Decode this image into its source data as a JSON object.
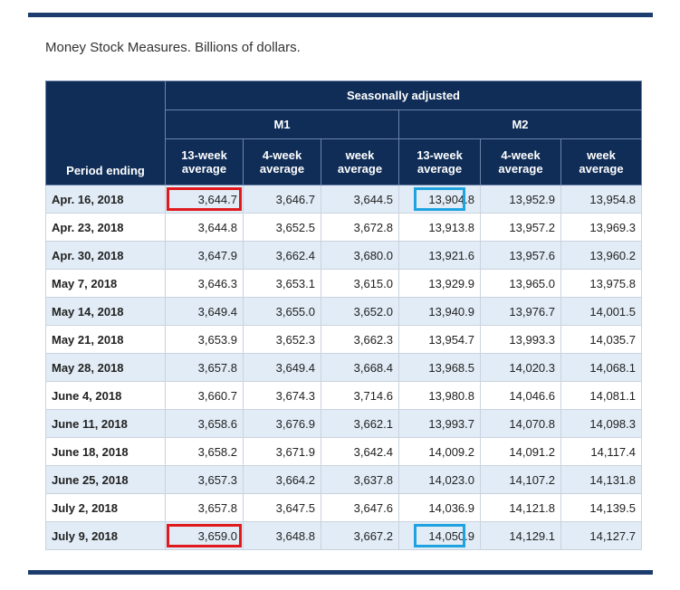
{
  "caption": "Money Stock Measures. Billions of dollars.",
  "headers": {
    "group": "Seasonally adjusted",
    "m1": "M1",
    "m2": "M2",
    "period": "Period ending",
    "cols": [
      [
        "13-week",
        "average"
      ],
      [
        "4-week",
        "average"
      ],
      [
        "week",
        "average"
      ],
      [
        "13-week",
        "average"
      ],
      [
        "4-week",
        "average"
      ],
      [
        "week",
        "average"
      ]
    ]
  },
  "rows": [
    {
      "period": "Apr. 16, 2018",
      "values": [
        "3,644.7",
        "3,646.7",
        "3,644.5",
        "13,904.8",
        "13,952.9",
        "13,954.8"
      ]
    },
    {
      "period": "Apr. 23, 2018",
      "values": [
        "3,644.8",
        "3,652.5",
        "3,672.8",
        "13,913.8",
        "13,957.2",
        "13,969.3"
      ]
    },
    {
      "period": "Apr. 30, 2018",
      "values": [
        "3,647.9",
        "3,662.4",
        "3,680.0",
        "13,921.6",
        "13,957.6",
        "13,960.2"
      ]
    },
    {
      "period": "May 7, 2018",
      "values": [
        "3,646.3",
        "3,653.1",
        "3,615.0",
        "13,929.9",
        "13,965.0",
        "13,975.8"
      ]
    },
    {
      "period": "May 14, 2018",
      "values": [
        "3,649.4",
        "3,655.0",
        "3,652.0",
        "13,940.9",
        "13,976.7",
        "14,001.5"
      ]
    },
    {
      "period": "May 21, 2018",
      "values": [
        "3,653.9",
        "3,652.3",
        "3,662.3",
        "13,954.7",
        "13,993.3",
        "14,035.7"
      ]
    },
    {
      "period": "May 28, 2018",
      "values": [
        "3,657.8",
        "3,649.4",
        "3,668.4",
        "13,968.5",
        "14,020.3",
        "14,068.1"
      ]
    },
    {
      "period": "June 4, 2018",
      "values": [
        "3,660.7",
        "3,674.3",
        "3,714.6",
        "13,980.8",
        "14,046.6",
        "14,081.1"
      ]
    },
    {
      "period": "June 11, 2018",
      "values": [
        "3,658.6",
        "3,676.9",
        "3,662.1",
        "13,993.7",
        "14,070.8",
        "14,098.3"
      ]
    },
    {
      "period": "June 18, 2018",
      "values": [
        "3,658.2",
        "3,671.9",
        "3,642.4",
        "14,009.2",
        "14,091.2",
        "14,117.4"
      ]
    },
    {
      "period": "June 25, 2018",
      "values": [
        "3,657.3",
        "3,664.2",
        "3,637.8",
        "14,023.0",
        "14,107.2",
        "14,131.8"
      ]
    },
    {
      "period": "July 2, 2018",
      "values": [
        "3,657.8",
        "3,647.5",
        "3,647.6",
        "14,036.9",
        "14,121.8",
        "14,139.5"
      ]
    },
    {
      "period": "July 9, 2018",
      "values": [
        "3,659.0",
        "3,648.8",
        "3,667.2",
        "14,050.9",
        "14,129.1",
        "14,127.7"
      ]
    }
  ],
  "highlights": [
    {
      "row": 0,
      "col": 0,
      "color": "#e0191e"
    },
    {
      "row": 0,
      "col": 3,
      "color": "#1fa3e0"
    },
    {
      "row": 12,
      "col": 0,
      "color": "#e0191e"
    },
    {
      "row": 12,
      "col": 3,
      "color": "#1fa3e0"
    }
  ],
  "colors": {
    "header_bg": "#0f2d57",
    "rule": "#1c3d6e",
    "stripe": "#e2ecf6"
  }
}
